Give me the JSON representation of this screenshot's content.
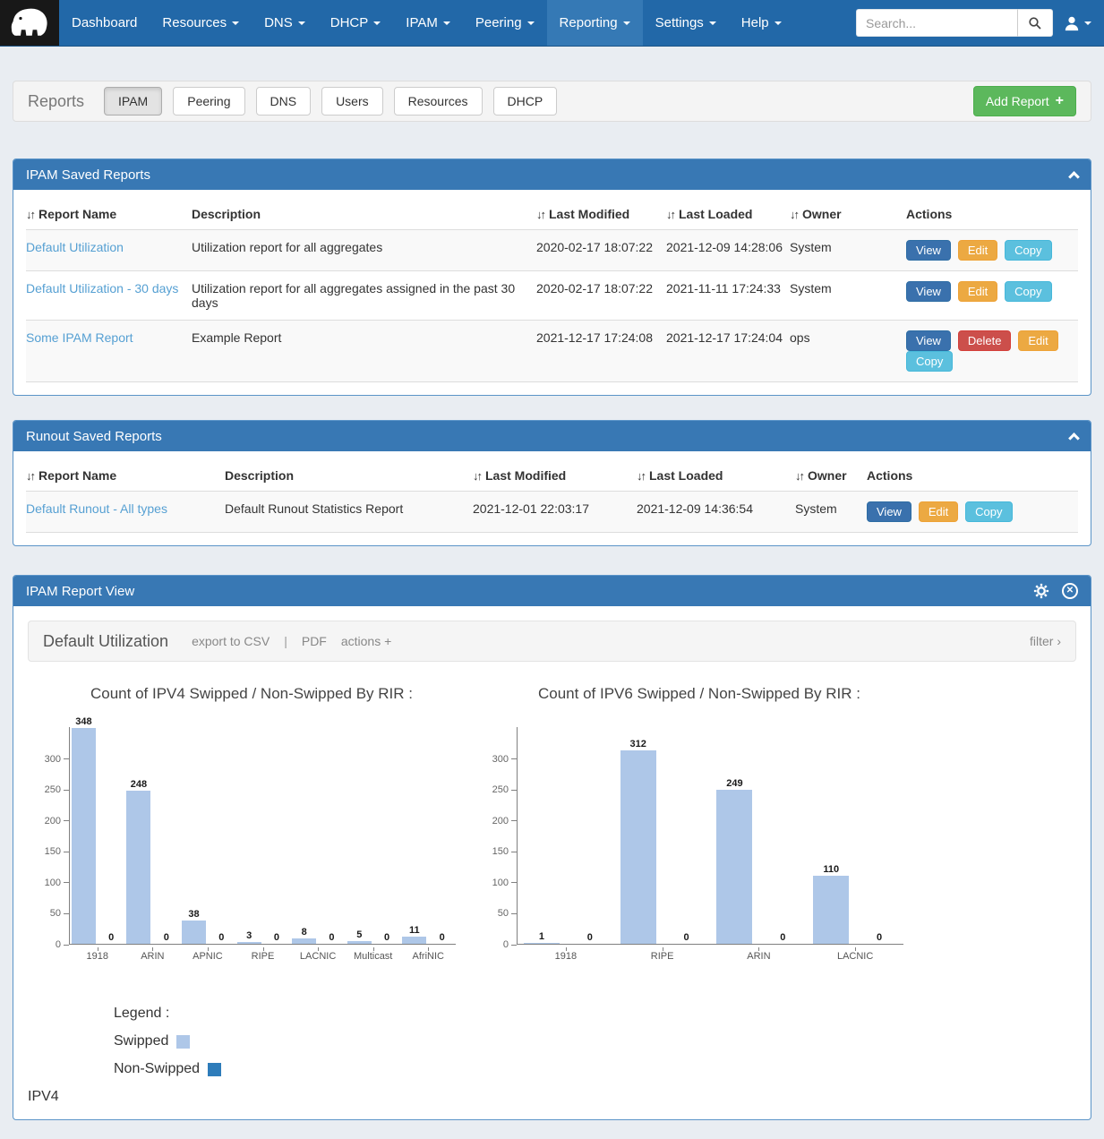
{
  "navbar": {
    "items": [
      {
        "label": "Dashboard",
        "dropdown": false,
        "active": false
      },
      {
        "label": "Resources",
        "dropdown": true,
        "active": false
      },
      {
        "label": "DNS",
        "dropdown": true,
        "active": false
      },
      {
        "label": "DHCP",
        "dropdown": true,
        "active": false
      },
      {
        "label": "IPAM",
        "dropdown": true,
        "active": false
      },
      {
        "label": "Peering",
        "dropdown": true,
        "active": false
      },
      {
        "label": "Reporting",
        "dropdown": true,
        "active": true
      },
      {
        "label": "Settings",
        "dropdown": true,
        "active": false
      },
      {
        "label": "Help",
        "dropdown": true,
        "active": false
      }
    ],
    "search": {
      "placeholder": "Search..."
    }
  },
  "icons": {
    "sort": "↓↑",
    "plus": "+",
    "close": "✕",
    "logo": "mammoth-logo",
    "search": "magnifier",
    "user": "person-silhouette",
    "collapse": "chevron-up",
    "settings": "gear",
    "close_panel": "circle-x"
  },
  "reports_bar": {
    "title": "Reports",
    "tabs": [
      {
        "label": "IPAM",
        "active": true
      },
      {
        "label": "Peering",
        "active": false
      },
      {
        "label": "DNS",
        "active": false
      },
      {
        "label": "Users",
        "active": false
      },
      {
        "label": "Resources",
        "active": false
      },
      {
        "label": "DHCP",
        "active": false
      }
    ],
    "add_button": "Add Report"
  },
  "ipam_reports": {
    "panel_title": "IPAM Saved Reports",
    "columns": [
      {
        "label": "Report Name",
        "sortable": true
      },
      {
        "label": "Description",
        "sortable": false
      },
      {
        "label": "Last Modified",
        "sortable": true
      },
      {
        "label": "Last Loaded",
        "sortable": true
      },
      {
        "label": "Owner",
        "sortable": true
      },
      {
        "label": "Actions",
        "sortable": false
      }
    ],
    "rows": [
      {
        "name": "Default Utilization",
        "description": "Utilization report for all aggregates",
        "last_modified": "2020-02-17 18:07:22",
        "last_loaded": "2021-12-09 14:28:06",
        "owner": "System",
        "actions": [
          "View",
          "Edit",
          "Copy"
        ]
      },
      {
        "name": "Default Utilization - 30 days",
        "description": "Utilization report for all aggregates assigned in the past 30 days",
        "last_modified": "2020-02-17 18:07:22",
        "last_loaded": "2021-11-11 17:24:33",
        "owner": "System",
        "actions": [
          "View",
          "Edit",
          "Copy"
        ]
      },
      {
        "name": "Some IPAM Report",
        "description": "Example Report",
        "last_modified": "2021-12-17 17:24:08",
        "last_loaded": "2021-12-17 17:24:04",
        "owner": "ops",
        "actions": [
          "View",
          "Delete",
          "Edit",
          "Copy"
        ]
      }
    ]
  },
  "runout_reports": {
    "panel_title": "Runout Saved Reports",
    "columns": [
      {
        "label": "Report Name",
        "sortable": true
      },
      {
        "label": "Description",
        "sortable": false
      },
      {
        "label": "Last Modified",
        "sortable": true
      },
      {
        "label": "Last Loaded",
        "sortable": true
      },
      {
        "label": "Owner",
        "sortable": true
      },
      {
        "label": "Actions",
        "sortable": false
      }
    ],
    "rows": [
      {
        "name": "Default Runout - All types",
        "description": "Default Runout Statistics Report",
        "last_modified": "2021-12-01 22:03:17",
        "last_loaded": "2021-12-09 14:36:54",
        "owner": "System",
        "actions": [
          "View",
          "Edit",
          "Copy"
        ]
      }
    ]
  },
  "report_view": {
    "panel_title": "IPAM Report View",
    "report_name": "Default Utilization",
    "toolbar": {
      "export_csv": "export to CSV",
      "separator": "|",
      "pdf": "PDF",
      "actions": "actions +",
      "filter": "filter ›"
    },
    "legend": {
      "heading": "Legend :",
      "items": [
        {
          "label": "Swipped",
          "color": "#aec7e8"
        },
        {
          "label": "Non-Swipped",
          "color": "#2e7cba"
        }
      ]
    },
    "footer_text": "IPV4"
  },
  "chart_data": [
    {
      "type": "bar",
      "title": "Count of IPV4 Swipped / Non-Swipped By RIR :",
      "categories": [
        "1918",
        "ARIN",
        "APNIC",
        "RIPE",
        "LACNIC",
        "Multicast",
        "AfriNIC"
      ],
      "series": [
        {
          "name": "Swipped",
          "color": "#aec7e8",
          "values": [
            348,
            248,
            38,
            3,
            8,
            5,
            11
          ]
        },
        {
          "name": "Non-Swipped",
          "color": "#2e7cba",
          "values": [
            0,
            0,
            0,
            0,
            0,
            0,
            0
          ]
        }
      ],
      "ylim": [
        0,
        350
      ],
      "yticks": [
        0,
        50,
        100,
        150,
        200,
        250,
        300
      ],
      "value_labels": true,
      "grid": false,
      "legend_position": "below-left"
    },
    {
      "type": "bar",
      "title": "Count of IPV6 Swipped / Non-Swipped By RIR :",
      "categories": [
        "1918",
        "RIPE",
        "ARIN",
        "LACNIC"
      ],
      "series": [
        {
          "name": "Swipped",
          "color": "#aec7e8",
          "values": [
            1,
            312,
            249,
            110
          ]
        },
        {
          "name": "Non-Swipped",
          "color": "#2e7cba",
          "values": [
            0,
            0,
            0,
            0
          ]
        }
      ],
      "ylim": [
        0,
        350
      ],
      "yticks": [
        0,
        50,
        100,
        150,
        200,
        250,
        300
      ],
      "value_labels": true,
      "grid": false,
      "legend_position": "shared"
    }
  ],
  "colors": {
    "navbar": "#2268a8",
    "navbar_active": "#3579b5",
    "panel_header": "#3878b4",
    "add_button": "#5cb85c",
    "view_button": "#3a71ad",
    "edit_button": "#eca942",
    "copy_button": "#5bc0de",
    "delete_button": "#cc4f4b",
    "link": "#56a0d3",
    "bar_swipped": "#aec7e8",
    "bar_non_swipped": "#2e7cba"
  }
}
